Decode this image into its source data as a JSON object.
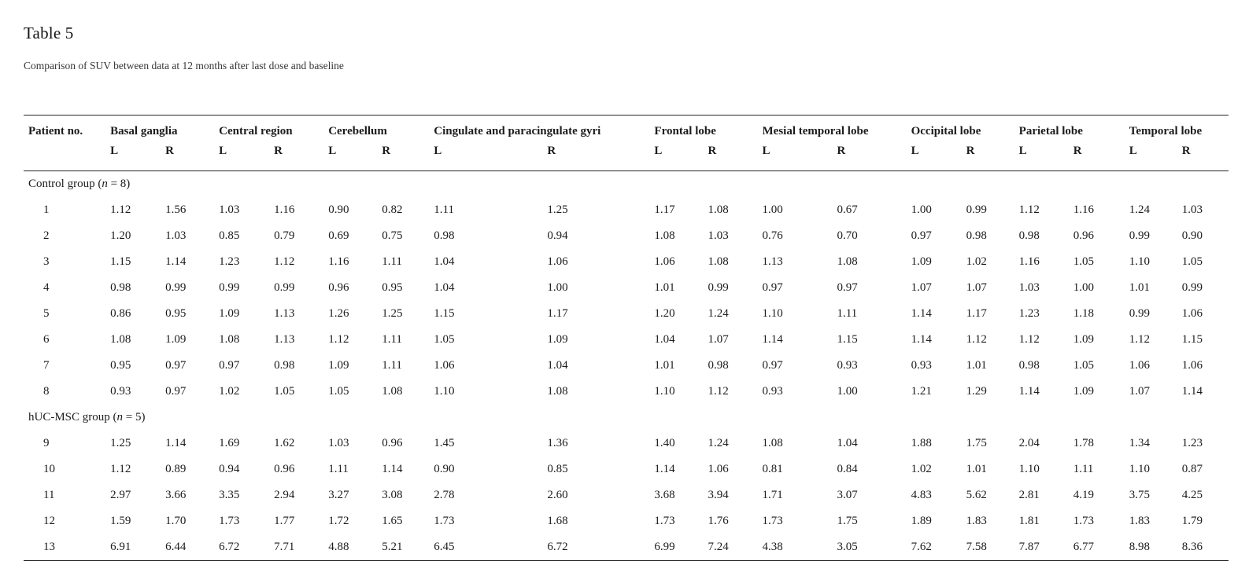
{
  "page": {
    "title": "Table 5",
    "caption": "Comparison of SUV between data at 12 months after last dose and baseline"
  },
  "table": {
    "patient_col_header": "Patient no.",
    "region_groups": [
      "Basal ganglia",
      "Central region",
      "Cerebellum",
      "Cingulate and paracingulate gyri",
      "Frontal lobe",
      "Mesial temporal lobe",
      "Occipital lobe",
      "Parietal lobe",
      "Temporal lobe"
    ],
    "subheaders": [
      "L",
      "R"
    ],
    "groups": [
      {
        "label_prefix": "Control group (",
        "n": "n",
        "label_suffix": " = 8)",
        "rows": [
          {
            "patient": "1",
            "values": [
              "1.12",
              "1.56",
              "1.03",
              "1.16",
              "0.90",
              "0.82",
              "1.11",
              "1.25",
              "1.17",
              "1.08",
              "1.00",
              "0.67",
              "1.00",
              "0.99",
              "1.12",
              "1.16",
              "1.24",
              "1.03"
            ]
          },
          {
            "patient": "2",
            "values": [
              "1.20",
              "1.03",
              "0.85",
              "0.79",
              "0.69",
              "0.75",
              "0.98",
              "0.94",
              "1.08",
              "1.03",
              "0.76",
              "0.70",
              "0.97",
              "0.98",
              "0.98",
              "0.96",
              "0.99",
              "0.90"
            ]
          },
          {
            "patient": "3",
            "values": [
              "1.15",
              "1.14",
              "1.23",
              "1.12",
              "1.16",
              "1.11",
              "1.04",
              "1.06",
              "1.06",
              "1.08",
              "1.13",
              "1.08",
              "1.09",
              "1.02",
              "1.16",
              "1.05",
              "1.10",
              "1.05"
            ]
          },
          {
            "patient": "4",
            "values": [
              "0.98",
              "0.99",
              "0.99",
              "0.99",
              "0.96",
              "0.95",
              "1.04",
              "1.00",
              "1.01",
              "0.99",
              "0.97",
              "0.97",
              "1.07",
              "1.07",
              "1.03",
              "1.00",
              "1.01",
              "0.99"
            ]
          },
          {
            "patient": "5",
            "values": [
              "0.86",
              "0.95",
              "1.09",
              "1.13",
              "1.26",
              "1.25",
              "1.15",
              "1.17",
              "1.20",
              "1.24",
              "1.10",
              "1.11",
              "1.14",
              "1.17",
              "1.23",
              "1.18",
              "0.99",
              "1.06"
            ]
          },
          {
            "patient": "6",
            "values": [
              "1.08",
              "1.09",
              "1.08",
              "1.13",
              "1.12",
              "1.11",
              "1.05",
              "1.09",
              "1.04",
              "1.07",
              "1.14",
              "1.15",
              "1.14",
              "1.12",
              "1.12",
              "1.09",
              "1.12",
              "1.15"
            ]
          },
          {
            "patient": "7",
            "values": [
              "0.95",
              "0.97",
              "0.97",
              "0.98",
              "1.09",
              "1.11",
              "1.06",
              "1.04",
              "1.01",
              "0.98",
              "0.97",
              "0.93",
              "0.93",
              "1.01",
              "0.98",
              "1.05",
              "1.06",
              "1.06"
            ]
          },
          {
            "patient": "8",
            "values": [
              "0.93",
              "0.97",
              "1.02",
              "1.05",
              "1.05",
              "1.08",
              "1.10",
              "1.08",
              "1.10",
              "1.12",
              "0.93",
              "1.00",
              "1.21",
              "1.29",
              "1.14",
              "1.09",
              "1.07",
              "1.14"
            ]
          }
        ]
      },
      {
        "label_prefix": "hUC-MSC group (",
        "n": "n",
        "label_suffix": " = 5)",
        "rows": [
          {
            "patient": "9",
            "values": [
              "1.25",
              "1.14",
              "1.69",
              "1.62",
              "1.03",
              "0.96",
              "1.45",
              "1.36",
              "1.40",
              "1.24",
              "1.08",
              "1.04",
              "1.88",
              "1.75",
              "2.04",
              "1.78",
              "1.34",
              "1.23"
            ]
          },
          {
            "patient": "10",
            "values": [
              "1.12",
              "0.89",
              "0.94",
              "0.96",
              "1.11",
              "1.14",
              "0.90",
              "0.85",
              "1.14",
              "1.06",
              "0.81",
              "0.84",
              "1.02",
              "1.01",
              "1.10",
              "1.11",
              "1.10",
              "0.87"
            ]
          },
          {
            "patient": "11",
            "values": [
              "2.97",
              "3.66",
              "3.35",
              "2.94",
              "3.27",
              "3.08",
              "2.78",
              "2.60",
              "3.68",
              "3.94",
              "1.71",
              "3.07",
              "4.83",
              "5.62",
              "2.81",
              "4.19",
              "3.75",
              "4.25"
            ]
          },
          {
            "patient": "12",
            "values": [
              "1.59",
              "1.70",
              "1.73",
              "1.77",
              "1.72",
              "1.65",
              "1.73",
              "1.68",
              "1.73",
              "1.76",
              "1.73",
              "1.75",
              "1.89",
              "1.83",
              "1.81",
              "1.73",
              "1.83",
              "1.79"
            ]
          },
          {
            "patient": "13",
            "values": [
              "6.91",
              "6.44",
              "6.72",
              "7.71",
              "4.88",
              "5.21",
              "6.45",
              "6.72",
              "6.99",
              "7.24",
              "4.38",
              "3.05",
              "7.62",
              "7.58",
              "7.87",
              "6.77",
              "8.98",
              "8.36"
            ]
          }
        ]
      }
    ]
  }
}
